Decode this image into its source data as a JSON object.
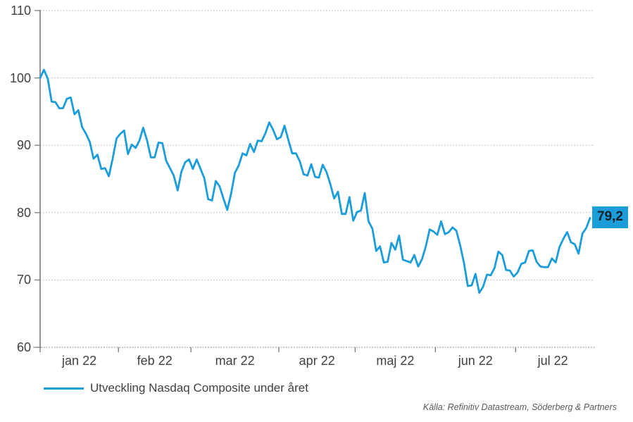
{
  "chart_data": {
    "type": "line",
    "title": "",
    "xlabel": "",
    "ylabel": "",
    "ylim": [
      60,
      110
    ],
    "yticks": [
      110,
      100,
      90,
      80,
      70,
      60
    ],
    "x_tick_labels": [
      "jan 22",
      "feb 22",
      "mar 22",
      "apr 22",
      "maj 22",
      "jun 22",
      "jul 22"
    ],
    "x_tick_day_indices": [
      0,
      20.5,
      39.5,
      62.5,
      82.5,
      103.5,
      124.5,
      144
    ],
    "grid": "horizontal-dotted",
    "legend_position": "bottom-left",
    "end_label": "79,2",
    "source": "Källa: Refinitiv Datastream, Söderberg & Partners",
    "series": [
      {
        "name": "Utveckling Nasdaq Composite under året",
        "color": "#1b9dd9",
        "values": [
          100.0,
          101.2,
          99.9,
          96.5,
          96.4,
          95.5,
          95.5,
          96.9,
          97.1,
          94.6,
          95.2,
          92.7,
          91.7,
          90.5,
          88.0,
          88.6,
          86.5,
          86.6,
          85.4,
          88.0,
          91.0,
          91.7,
          92.2,
          88.7,
          90.1,
          89.6,
          90.7,
          92.6,
          90.7,
          88.2,
          88.2,
          90.4,
          90.3,
          87.7,
          86.6,
          85.5,
          83.3,
          86.1,
          87.5,
          87.9,
          86.5,
          87.9,
          86.5,
          85.1,
          82.0,
          81.8,
          84.7,
          83.9,
          82.1,
          80.4,
          82.8,
          85.9,
          87.0,
          88.8,
          88.5,
          90.2,
          89.0,
          90.7,
          90.6,
          91.8,
          93.4,
          92.3,
          90.9,
          91.2,
          92.9,
          90.8,
          88.8,
          88.8,
          87.6,
          85.7,
          85.5,
          87.2,
          85.3,
          85.2,
          87.1,
          86.0,
          84.2,
          82.1,
          83.1,
          79.8,
          79.8,
          82.3,
          78.8,
          80.1,
          80.3,
          82.9,
          78.7,
          77.6,
          74.3,
          75.0,
          72.6,
          72.7,
          75.5,
          74.5,
          76.6,
          73.0,
          72.8,
          72.6,
          73.7,
          72.0,
          73.1,
          75.0,
          77.5,
          77.2,
          76.7,
          78.7,
          76.8,
          77.1,
          77.8,
          77.3,
          75.1,
          72.5,
          69.1,
          69.2,
          70.9,
          68.1,
          69.0,
          70.8,
          70.7,
          71.8,
          74.2,
          73.7,
          71.5,
          71.4,
          70.5,
          71.1,
          72.4,
          72.6,
          74.3,
          74.4,
          72.7,
          72.0,
          71.9,
          71.9,
          73.2,
          72.6,
          74.9,
          76.1,
          77.1,
          75.6,
          75.3,
          73.9,
          76.9,
          77.7,
          79.2
        ]
      }
    ]
  },
  "colors": {
    "line": "#1b9dd9",
    "label_box_bg": "#1b9dd9",
    "label_box_text": "#15222b",
    "axis": "#7a7a7a",
    "x_axis_line": "#8c8c8c",
    "grid": "#b3b3b3",
    "tick_text": "#404040",
    "source_text": "#595959"
  }
}
